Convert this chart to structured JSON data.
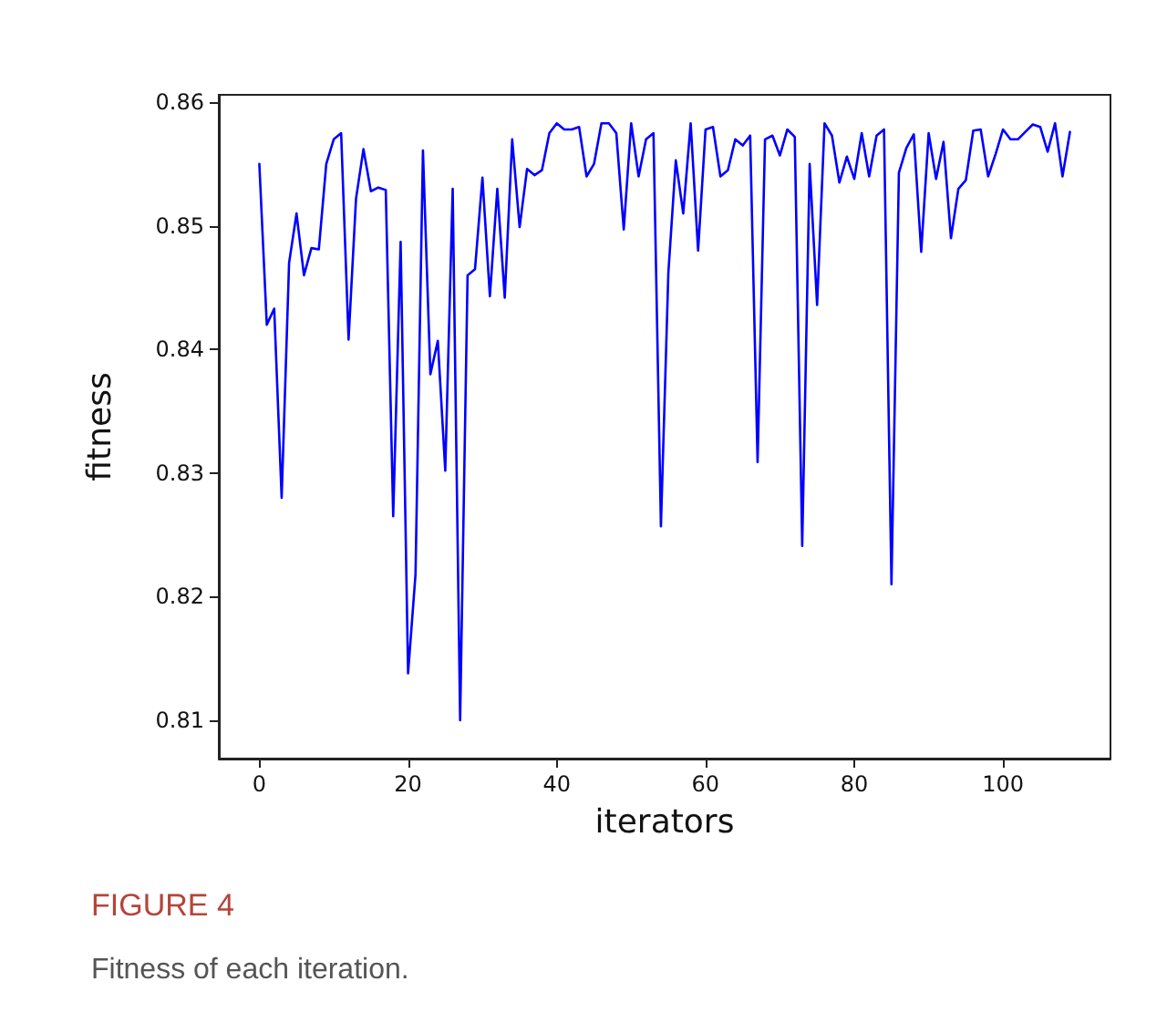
{
  "chart_data": {
    "type": "line",
    "xlabel": "iterators",
    "ylabel": "fitness",
    "x": [
      0,
      1,
      2,
      3,
      4,
      5,
      6,
      7,
      8,
      9,
      10,
      11,
      12,
      13,
      14,
      15,
      16,
      17,
      18,
      19,
      20,
      21,
      22,
      23,
      24,
      25,
      26,
      27,
      28,
      29,
      30,
      31,
      32,
      33,
      34,
      35,
      36,
      37,
      38,
      39,
      40,
      41,
      42,
      43,
      44,
      45,
      46,
      47,
      48,
      49,
      50,
      51,
      52,
      53,
      54,
      55,
      56,
      57,
      58,
      59,
      60,
      61,
      62,
      63,
      64,
      65,
      66,
      67,
      68,
      69,
      70,
      71,
      72,
      73,
      74,
      75,
      76,
      77,
      78,
      79,
      80,
      81,
      82,
      83,
      84,
      85,
      86,
      87,
      88,
      89,
      90,
      91,
      92,
      93,
      94,
      95,
      96,
      97,
      98,
      99,
      100,
      101,
      102,
      103,
      104,
      105,
      106,
      107,
      108,
      109
    ],
    "series": [
      {
        "color": "#0000ff",
        "values": [
          0.855,
          0.842,
          0.8433,
          0.828,
          0.847,
          0.851,
          0.846,
          0.8482,
          0.8481,
          0.855,
          0.857,
          0.8575,
          0.8408,
          0.8522,
          0.8562,
          0.8528,
          0.8531,
          0.8529,
          0.8265,
          0.8487,
          0.8138,
          0.8218,
          0.8561,
          0.838,
          0.8407,
          0.8302,
          0.853,
          0.81,
          0.846,
          0.8465,
          0.8539,
          0.8443,
          0.853,
          0.8442,
          0.857,
          0.8499,
          0.8546,
          0.8541,
          0.8545,
          0.8575,
          0.8583,
          0.8578,
          0.8578,
          0.858,
          0.854,
          0.855,
          0.8583,
          0.8583,
          0.8575,
          0.8497,
          0.8583,
          0.854,
          0.857,
          0.8575,
          0.8257,
          0.8462,
          0.8553,
          0.851,
          0.8583,
          0.848,
          0.8578,
          0.858,
          0.854,
          0.8545,
          0.857,
          0.8565,
          0.8573,
          0.8309,
          0.857,
          0.8573,
          0.8557,
          0.8578,
          0.8572,
          0.8241,
          0.855,
          0.8436,
          0.8583,
          0.8573,
          0.8535,
          0.8556,
          0.8538,
          0.8575,
          0.854,
          0.8573,
          0.8578,
          0.821,
          0.8543,
          0.8563,
          0.8574,
          0.8479,
          0.8575,
          0.8538,
          0.8568,
          0.849,
          0.853,
          0.8537,
          0.8577,
          0.8578,
          0.854,
          0.8558,
          0.8578,
          0.857,
          0.857,
          0.8576,
          0.8582,
          0.858,
          0.856,
          0.8583,
          0.854,
          0.8576
        ]
      }
    ],
    "xlim": [
      -5.45,
      114.45
    ],
    "xticks": [
      0,
      20,
      40,
      60,
      80,
      100
    ],
    "ylim": [
      0.8069,
      0.8606
    ],
    "yticks": [
      0.81,
      0.82,
      0.83,
      0.84,
      0.85,
      0.86
    ],
    "grid": false,
    "marker": "none",
    "line_style": "solid",
    "annotations": [
      "FIGURE 4",
      "Fitness of each iteration."
    ]
  }
}
